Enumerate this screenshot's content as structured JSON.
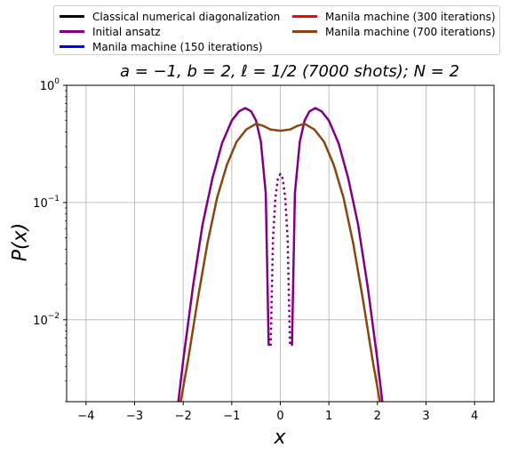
{
  "chart_data": {
    "type": "line",
    "title": "a = −1, b = 2, ℓ = 1/2 (7000 shots); N = 2",
    "xlabel": "x",
    "ylabel": "P(x)",
    "xlim": [
      -4.4,
      4.4
    ],
    "ylim": [
      0.002,
      1.0
    ],
    "yscale": "log",
    "grid": true,
    "legend_placement": "top",
    "xticks": [
      -4,
      -3,
      -2,
      -1,
      0,
      1,
      2,
      3,
      4
    ],
    "xtick_labels": [
      "−4",
      "−3",
      "−2",
      "−1",
      "0",
      "1",
      "2",
      "3",
      "4"
    ],
    "yticks": [
      {
        "value": 1.0,
        "base": "10",
        "exp": "0"
      },
      {
        "value": 0.1,
        "base": "10",
        "exp": "−1"
      },
      {
        "value": 0.01,
        "base": "10",
        "exp": "−2"
      }
    ],
    "series": [
      {
        "name": "Classical numerical diagonalization",
        "color": "#000000",
        "points": []
      },
      {
        "name": "Initial ansatz",
        "color": "#800080",
        "points": [
          [
            -2.1,
            0.002
          ],
          [
            -2.0,
            0.0045
          ],
          [
            -1.8,
            0.019
          ],
          [
            -1.6,
            0.065
          ],
          [
            -1.4,
            0.16
          ],
          [
            -1.2,
            0.32
          ],
          [
            -1.0,
            0.5
          ],
          [
            -0.85,
            0.6
          ],
          [
            -0.72,
            0.64
          ],
          [
            -0.6,
            0.6
          ],
          [
            -0.5,
            0.5
          ],
          [
            -0.4,
            0.33
          ],
          [
            -0.3,
            0.12
          ],
          [
            -0.24,
            0.006
          ],
          [
            null,
            null
          ],
          [
            0.24,
            0.006
          ],
          [
            0.3,
            0.12
          ],
          [
            0.4,
            0.33
          ],
          [
            0.5,
            0.5
          ],
          [
            0.6,
            0.6
          ],
          [
            0.72,
            0.64
          ],
          [
            0.85,
            0.6
          ],
          [
            1.0,
            0.5
          ],
          [
            1.2,
            0.32
          ],
          [
            1.4,
            0.16
          ],
          [
            1.6,
            0.065
          ],
          [
            1.8,
            0.019
          ],
          [
            2.0,
            0.0045
          ],
          [
            2.1,
            0.002
          ]
        ]
      },
      {
        "name": "Initial ansatz (dotted)",
        "color": "#800080",
        "dash": true,
        "points": [
          [
            -0.2,
            0.006
          ],
          [
            -0.15,
            0.05
          ],
          [
            -0.1,
            0.11
          ],
          [
            -0.05,
            0.16
          ],
          [
            0.0,
            0.175
          ],
          [
            0.05,
            0.16
          ],
          [
            0.1,
            0.11
          ],
          [
            0.15,
            0.05
          ],
          [
            0.2,
            0.006
          ]
        ]
      },
      {
        "name": "Manila machine (150 iterations)",
        "color": "#0000ff",
        "points": []
      },
      {
        "name": "Manila machine (300 iterations)",
        "color": "#ff0000",
        "points": []
      },
      {
        "name": "Manila machine (700 iterations)",
        "color": "#8b4513",
        "points": [
          [
            -2.05,
            0.002
          ],
          [
            -1.9,
            0.0045
          ],
          [
            -1.7,
            0.015
          ],
          [
            -1.5,
            0.045
          ],
          [
            -1.3,
            0.11
          ],
          [
            -1.1,
            0.21
          ],
          [
            -0.9,
            0.33
          ],
          [
            -0.7,
            0.42
          ],
          [
            -0.5,
            0.47
          ],
          [
            -0.35,
            0.45
          ],
          [
            -0.2,
            0.42
          ],
          [
            0.0,
            0.41
          ],
          [
            0.2,
            0.42
          ],
          [
            0.35,
            0.45
          ],
          [
            0.5,
            0.47
          ],
          [
            0.7,
            0.42
          ],
          [
            0.9,
            0.33
          ],
          [
            1.1,
            0.21
          ],
          [
            1.3,
            0.11
          ],
          [
            1.5,
            0.045
          ],
          [
            1.7,
            0.015
          ],
          [
            1.9,
            0.0045
          ],
          [
            2.05,
            0.002
          ]
        ]
      }
    ]
  },
  "legend": [
    {
      "label": "Classical numerical diagonalization",
      "color": "#000000"
    },
    {
      "label": "Initial ansatz",
      "color": "#800080"
    },
    {
      "label": "Manila machine (150 iterations)",
      "color": "#0000ff"
    },
    {
      "label": "Manila machine (300 iterations)",
      "color": "#ff0000"
    },
    {
      "label": "Manila machine (700 iterations)",
      "color": "#8b4513"
    }
  ]
}
